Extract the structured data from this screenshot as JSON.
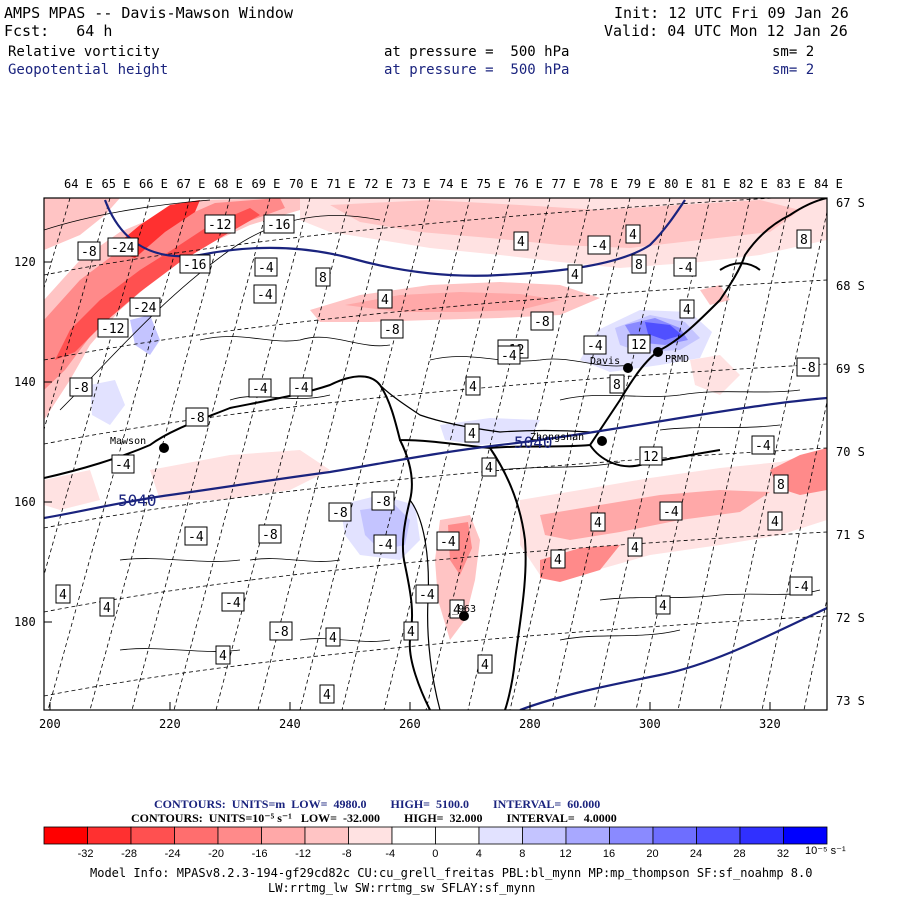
{
  "header": {
    "title": "AMPS MPAS -- Davis-Mawson Window",
    "init": "Init: 12 UTC Fri 09 Jan 26",
    "fcst": "Fcst:   64 h",
    "valid": "Valid: 04 UTC Mon 12 Jan 26",
    "field1": {
      "name": "Relative vorticity",
      "pressure": "at pressure =  500 hPa",
      "sm": "sm= 2"
    },
    "field2": {
      "name": "Geopotential height",
      "pressure": "at pressure =  500 hPa",
      "sm": "sm= 2"
    }
  },
  "map": {
    "top_lon_labels": [
      "64 E",
      "65 E",
      "66 E",
      "67 E",
      "68 E",
      "69 E",
      "70 E",
      "71 E",
      "72 E",
      "73 E",
      "74 E",
      "75 E",
      "76 E",
      "77 E",
      "78 E",
      "79 E",
      "80 E",
      "81 E",
      "82 E",
      "83 E",
      "84 E"
    ],
    "right_lat_labels": [
      "67 S",
      "68 S",
      "69 S",
      "70 S",
      "71 S",
      "72 S",
      "73 S"
    ],
    "left_y_ticks": [
      "120",
      "140",
      "160",
      "180"
    ],
    "bottom_x_ticks": [
      "200",
      "220",
      "240",
      "260",
      "280",
      "300",
      "320"
    ],
    "height_contour_labels": [
      "5040",
      "5040"
    ],
    "stations": [
      "Mawson",
      "Davis",
      "Zhongshan",
      "PRMD",
      "_963"
    ],
    "vort_labels": [
      "-8",
      "-24",
      "-12",
      "-16",
      "-12",
      "-24",
      "-16",
      "-4",
      "8",
      "4",
      "-4",
      "-8",
      "-4",
      "-4",
      "-8",
      "-4",
      "-8",
      "-8",
      "-12",
      "4",
      "-4",
      "12",
      "8",
      "4",
      "4",
      "-4",
      "4",
      "4",
      "8",
      "-4",
      "4",
      "-4",
      "8",
      "-8",
      "-4",
      "8",
      "4",
      "12",
      "-8",
      "-8",
      "-4",
      "-8",
      "-4",
      "-4",
      "4",
      "-4",
      "4",
      "4",
      "4",
      "-4",
      "4",
      "4",
      "-4",
      "-8",
      "4",
      "4",
      "-4",
      "4",
      "4",
      "4",
      "4",
      "4"
    ],
    "colors": {
      "height_contour": "#1a237e",
      "coast": "#000000"
    }
  },
  "contour_info": {
    "line1": "CONTOURS:  UNITS=m  LOW=  4980.0        HIGH=  5100.0        INTERVAL=  60.000",
    "line2": "CONTOURS:  UNITS=10⁻⁵ s⁻¹   LOW=  -32.000        HIGH=  32.000        INTERVAL=   4.0000"
  },
  "colorbar": {
    "labels": [
      "-32",
      "-28",
      "-24",
      "-20",
      "-16",
      "-12",
      "-8",
      "-4",
      "0",
      "4",
      "8",
      "12",
      "16",
      "20",
      "24",
      "28",
      "32"
    ],
    "units": "10⁻⁵ s⁻¹",
    "colors": [
      "#ff0000",
      "#ff3030",
      "#ff5050",
      "#ff6e6e",
      "#ff8a8a",
      "#ffa8a8",
      "#ffc4c4",
      "#ffe2e2",
      "#ffffff",
      "#ffffff",
      "#e2e2ff",
      "#c4c4ff",
      "#a8a8ff",
      "#8a8aff",
      "#6e6eff",
      "#5050ff",
      "#3030ff",
      "#0000ff"
    ]
  },
  "model_info": {
    "line1": "Model Info: MPASv8.2.3-194-gf29cd82c CU:cu_grell_freitas PBL:bl_mynn MP:mp_thompson SF:sf_noahmp 8.0",
    "line2": "LW:rrtmg_lw SW:rrtmg_sw SFLAY:sf_mynn"
  }
}
